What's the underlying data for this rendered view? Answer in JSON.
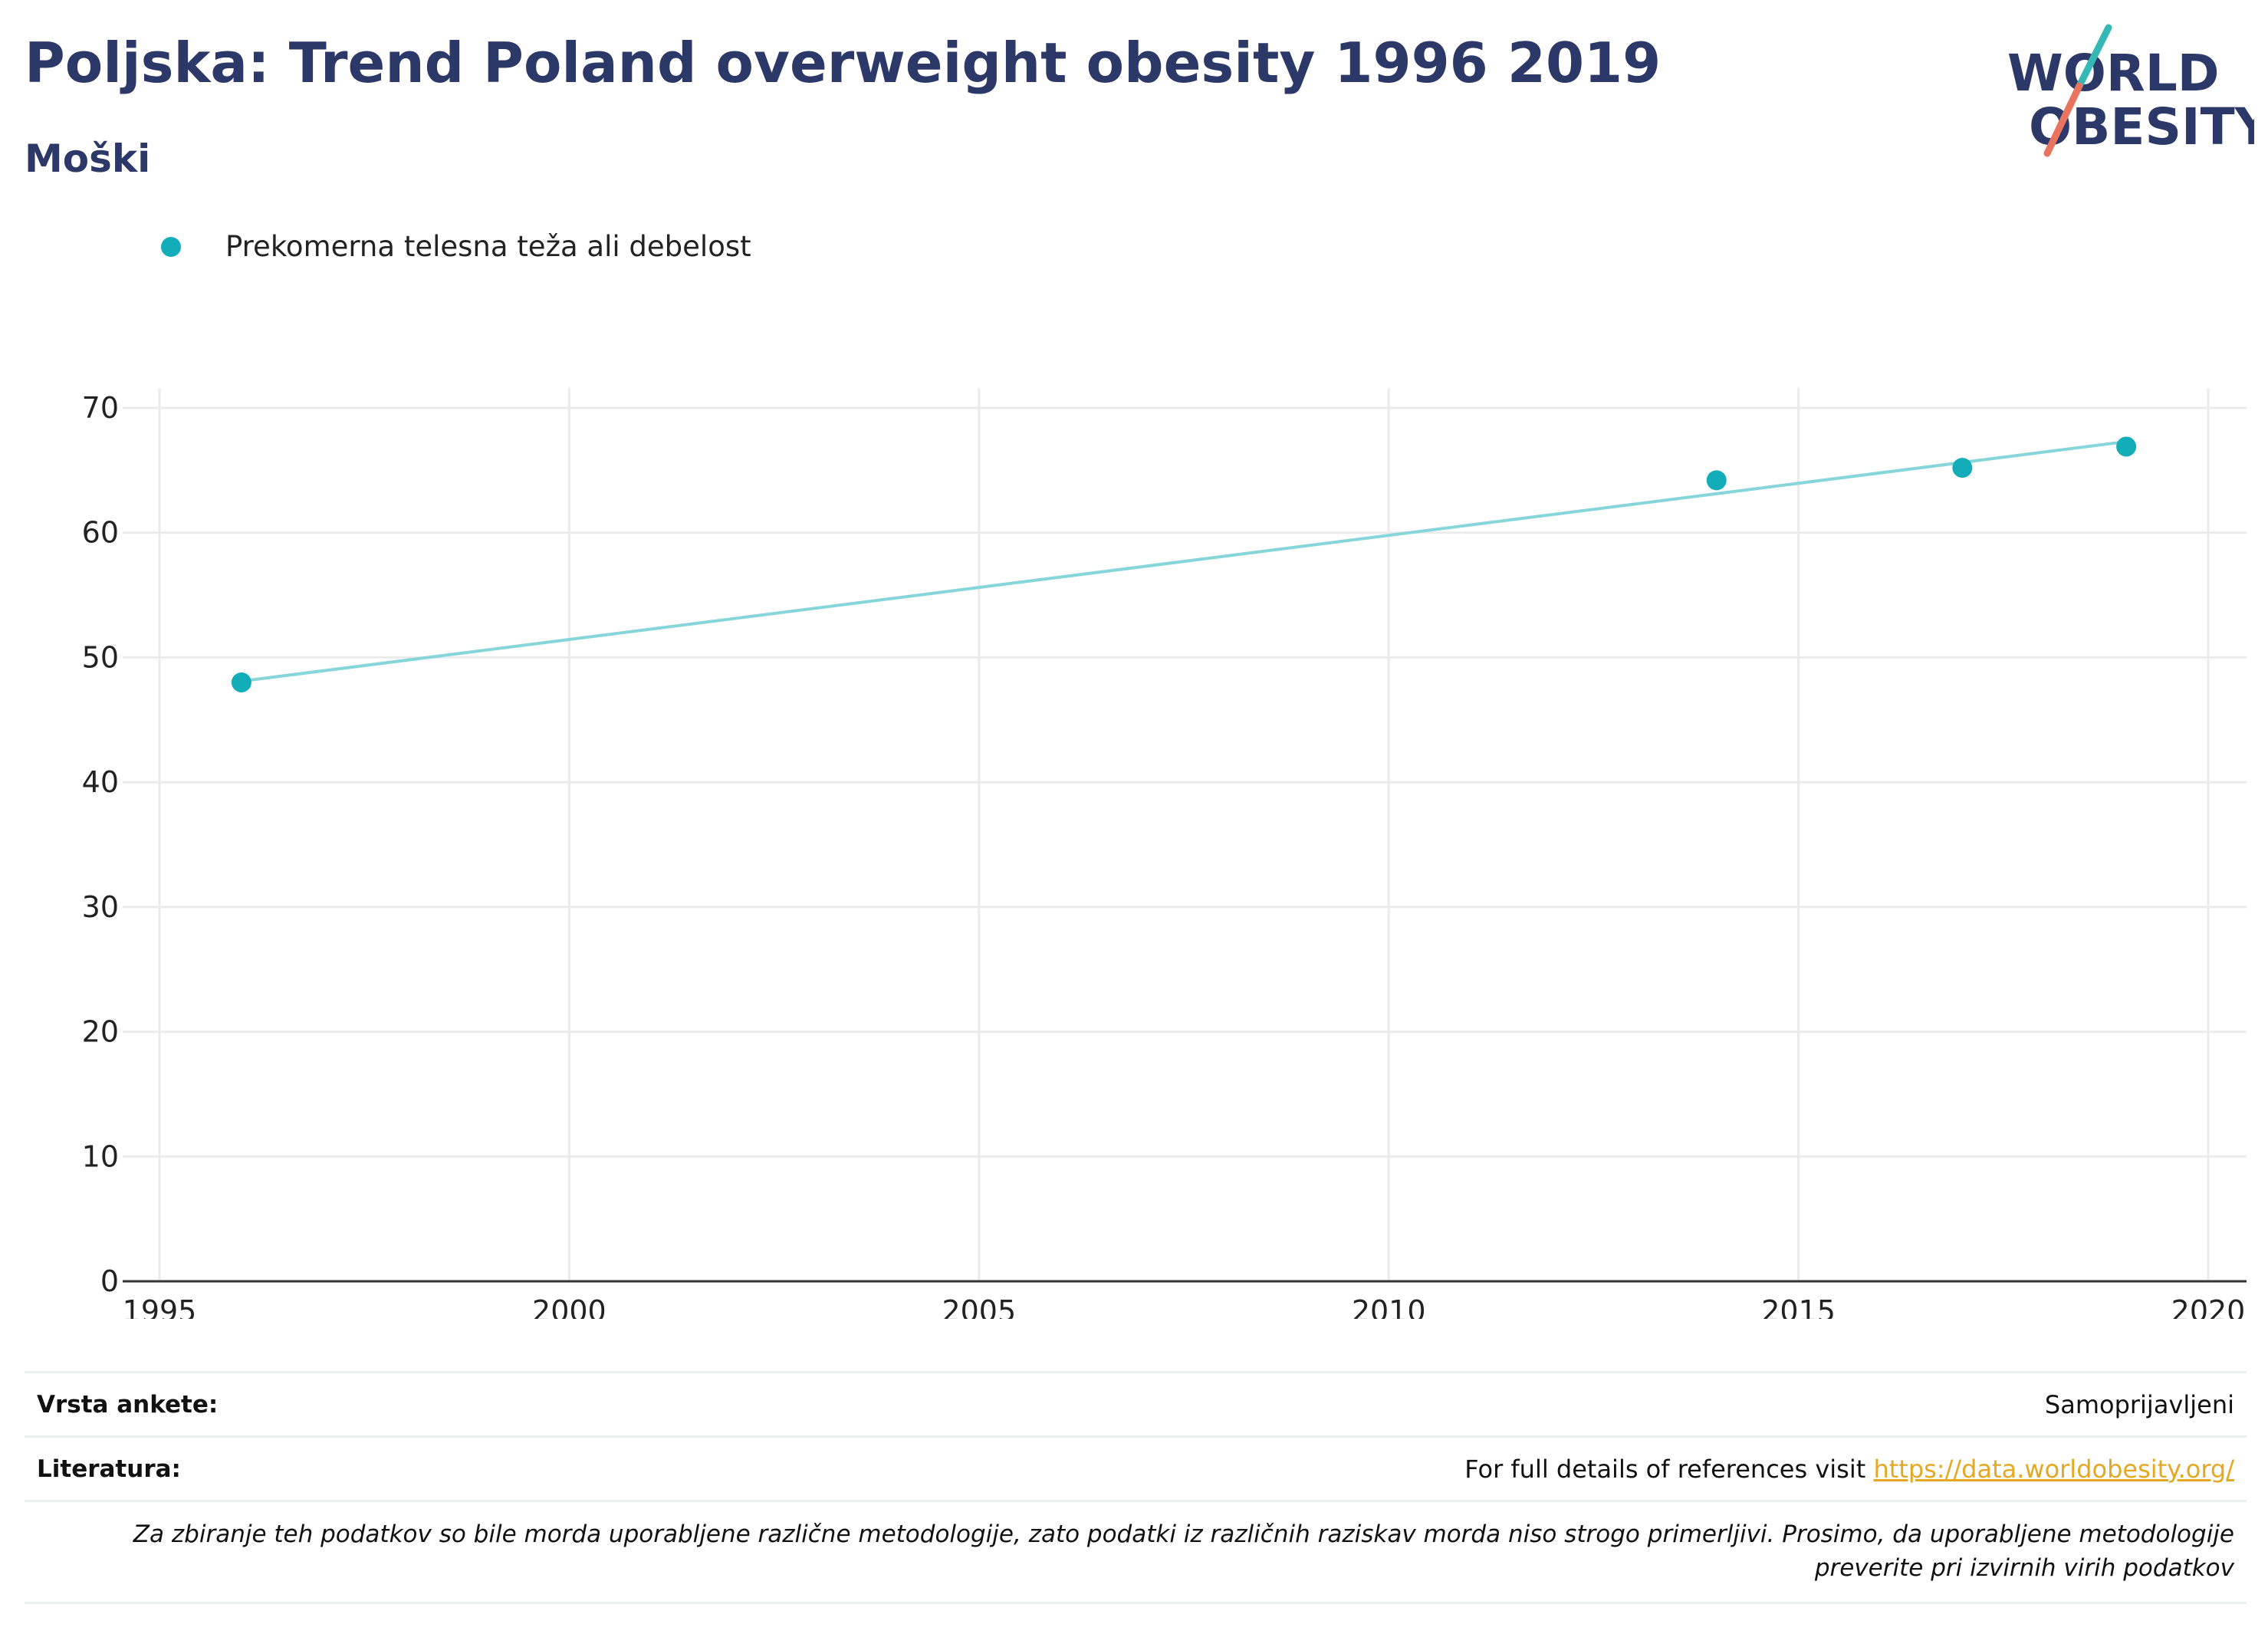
{
  "header": {
    "title": "Poljska: Trend Poland overweight obesity 1996 2019",
    "subtitle": "Moški"
  },
  "logo": {
    "line1": "WORLD",
    "line2": "OBESITY",
    "text_color": "#2c3868",
    "accent_teal": "#35b8b5",
    "accent_coral": "#e8735f"
  },
  "colors": {
    "series": "#12adb8",
    "trend": "#86d6d9",
    "grid": "#ebebeb",
    "axis": "#333333",
    "link": "#e5a823"
  },
  "chart_data": {
    "type": "scatter",
    "title": "Poljska: Trend Poland overweight obesity 1996 2019",
    "subtitle": "Moški",
    "legend_position": "top-left",
    "grid": true,
    "xlim": [
      1995,
      2020
    ],
    "ylim": [
      0,
      70
    ],
    "x_ticks": [
      1995,
      2000,
      2005,
      2010,
      2015,
      2020
    ],
    "y_ticks": [
      0,
      10,
      20,
      30,
      40,
      50,
      60,
      70
    ],
    "series": [
      {
        "name": "Prekomerna telesna teža ali debelost",
        "x": [
          1996,
          2014,
          2017,
          2019
        ],
        "y": [
          48.0,
          64.2,
          65.2,
          66.9
        ]
      }
    ],
    "trendline": {
      "x": [
        1996,
        2019
      ],
      "y": [
        48.1,
        67.3
      ]
    }
  },
  "info": {
    "survey_label": "Vrsta ankete:",
    "survey_value": "Samoprijavljeni",
    "refs_label": "Literatura:",
    "refs_text": "For full details of references visit ",
    "refs_link": "https://data.worldobesity.org/",
    "note": "Za zbiranje teh podatkov so bile morda uporabljene različne metodologije, zato podatki iz različnih raziskav morda niso strogo primerljivi. Prosimo, da uporabljene metodologije preverite pri izvirnih virih podatkov"
  }
}
